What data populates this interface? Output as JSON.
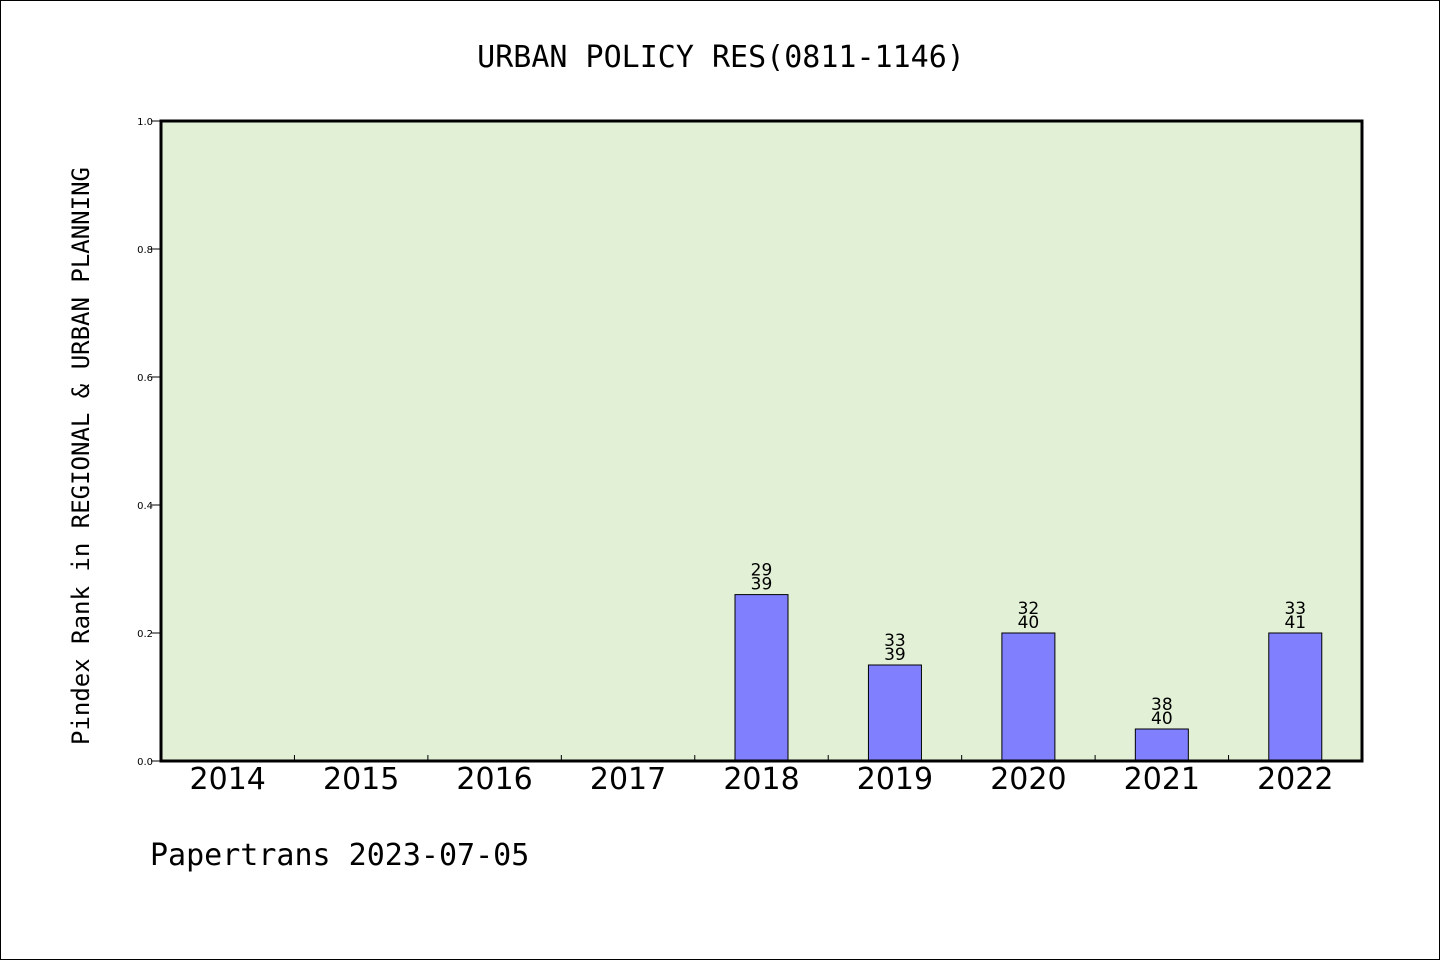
{
  "chart_data": {
    "type": "bar",
    "title": "URBAN POLICY RES(0811-1146)",
    "ylabel": "Pindex Rank in REGIONAL & URBAN PLANNING",
    "xlabel": "",
    "categories": [
      "2014",
      "2015",
      "2016",
      "2017",
      "2018",
      "2019",
      "2020",
      "2021",
      "2022"
    ],
    "values": [
      null,
      null,
      null,
      null,
      0.26,
      0.15,
      0.2,
      0.05,
      0.2
    ],
    "bar_labels": [
      null,
      null,
      null,
      null,
      [
        "29",
        "39"
      ],
      [
        "33",
        "39"
      ],
      [
        "32",
        "40"
      ],
      [
        "38",
        "40"
      ],
      [
        "33",
        "41"
      ]
    ],
    "ylim": [
      0.0,
      1.0
    ],
    "yticks": [
      "0.0",
      "0.2",
      "0.4",
      "0.6",
      "0.8",
      "1.0"
    ],
    "grid": false,
    "legend": "none",
    "colors": {
      "plot_background": "#e2f0d6",
      "bar_fill": "#8080ff",
      "bar_edge": "#000000",
      "axis": "#000000"
    }
  },
  "footer": {
    "text": "Papertrans 2023-07-05"
  }
}
